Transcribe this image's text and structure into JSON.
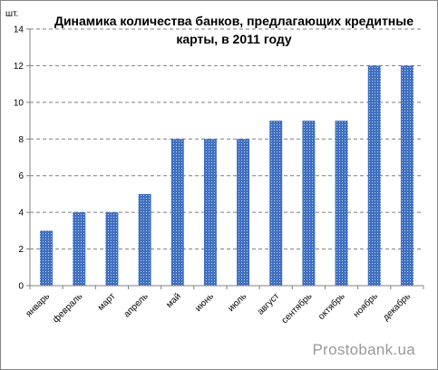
{
  "chart_data": {
    "type": "bar",
    "title_lines": [
      "Динамика количества банков, предлагающих кредитные",
      "карты, в 2011  году"
    ],
    "ylabel": "шт.",
    "categories": [
      "январь",
      "февраль",
      "март",
      "апрель",
      "май",
      "июнь",
      "июль",
      "август",
      "сентябрь",
      "октябрь",
      "ноябрь",
      "декабрь"
    ],
    "values": [
      3,
      4,
      4,
      5,
      8,
      8,
      8,
      9,
      9,
      9,
      12,
      12
    ],
    "ylim": [
      0,
      14
    ],
    "yticks": [
      0,
      2,
      4,
      6,
      8,
      10,
      12,
      14
    ],
    "grid": "horizontal-dashed",
    "legend": "none",
    "bar_fill": "dotted-blue",
    "colors": {
      "bar": "#3f6fc0",
      "bar_dots": "#bcd0ee",
      "grid": "#7f7f7f",
      "axis": "#808080"
    }
  },
  "watermark": "Prostobank.ua"
}
